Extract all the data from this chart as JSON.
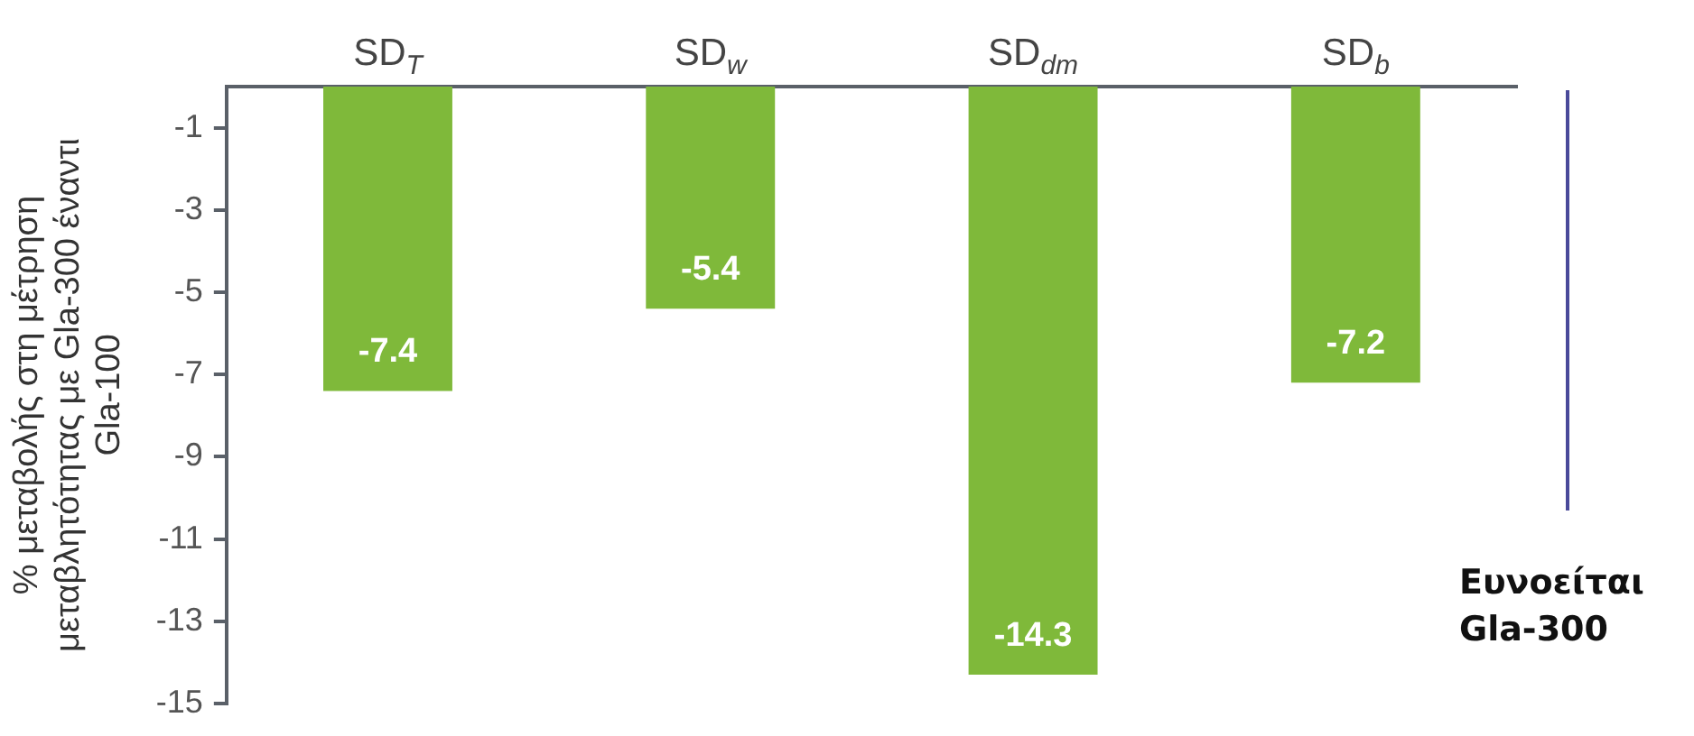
{
  "chart_data": {
    "type": "bar",
    "ylabel": "% μεταβολής στη μέτρηση μεταβλητότητας με Gla-300 έναντι Gla-100",
    "categories": [
      "SD$_{T}$",
      "SD$_{w}$",
      "SD$_{dm}$",
      "SD$_{b}$"
    ],
    "values": [
      -7.4,
      -5.4,
      -14.3,
      -7.2
    ],
    "color": "#7fb93a",
    "ylim": [
      -15,
      0
    ],
    "yticks": [
      -1,
      -3,
      -5,
      -7,
      -9,
      -11,
      -13,
      -15
    ],
    "grid": false,
    "data_labels": true,
    "annotations": [
      "Ευνοείται Gla-300"
    ]
  }
}
